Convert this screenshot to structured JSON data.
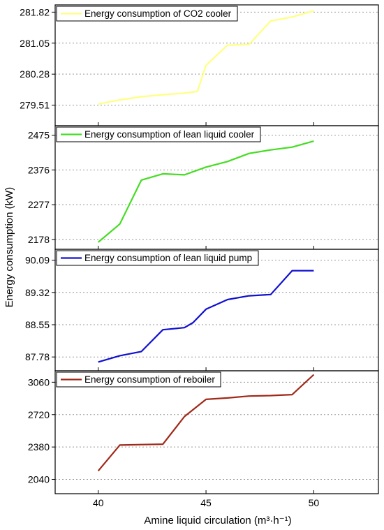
{
  "chart_data": {
    "type": "line",
    "ylabel": "Energy consumption (kW)",
    "xlabel": "Amine liquid circulation (m³·h⁻¹)",
    "x_ticks": [
      40,
      45,
      50
    ],
    "xlim": [
      38,
      53
    ],
    "grid": "horizontal dashed",
    "legend_position": "top-left",
    "panels": [
      {
        "name": "Energy consumption of CO2 cooler",
        "color": "#ffff80",
        "y_ticks": [
          279.51,
          280.28,
          281.05,
          281.82
        ],
        "ylim": [
          279.0,
          282.0
        ],
        "x": [
          40,
          41,
          42,
          43,
          44,
          44.6,
          45,
          46,
          47,
          48,
          49,
          50
        ],
        "y": [
          279.54,
          279.64,
          279.72,
          279.77,
          279.81,
          279.85,
          280.5,
          281.0,
          281.02,
          281.6,
          281.7,
          281.85
        ]
      },
      {
        "name": "Energy consumption of lean liquid cooler",
        "color": "#44dd22",
        "y_ticks": [
          2178,
          2277,
          2376,
          2475
        ],
        "ylim": [
          2150,
          2502
        ],
        "x": [
          40,
          41,
          42,
          43,
          44,
          45,
          46,
          47,
          48,
          49,
          50
        ],
        "y": [
          2170,
          2222,
          2347,
          2365,
          2362,
          2384,
          2400,
          2423,
          2433,
          2441,
          2458
        ]
      },
      {
        "name": "Energy consumption of lean liquid pump",
        "color": "#1010d0",
        "y_ticks": [
          87.78,
          88.55,
          89.32,
          90.09
        ],
        "ylim": [
          87.45,
          90.35
        ],
        "x": [
          40,
          41,
          42,
          43,
          44,
          44.4,
          45,
          46,
          47,
          48,
          49,
          50
        ],
        "y": [
          87.66,
          87.81,
          87.91,
          88.43,
          88.48,
          88.6,
          88.92,
          89.15,
          89.24,
          89.27,
          89.84,
          89.84
        ]
      },
      {
        "name": "Energy consumption of reboiler",
        "color": "#a02818",
        "y_ticks": [
          2040,
          2380,
          2720,
          3060
        ],
        "ylim": [
          1890,
          3180
        ],
        "x": [
          40,
          41,
          42,
          43,
          44,
          45,
          46,
          47,
          48,
          49,
          50
        ],
        "y": [
          2130,
          2400,
          2405,
          2410,
          2700,
          2880,
          2895,
          2915,
          2920,
          2930,
          3140
        ]
      }
    ]
  }
}
